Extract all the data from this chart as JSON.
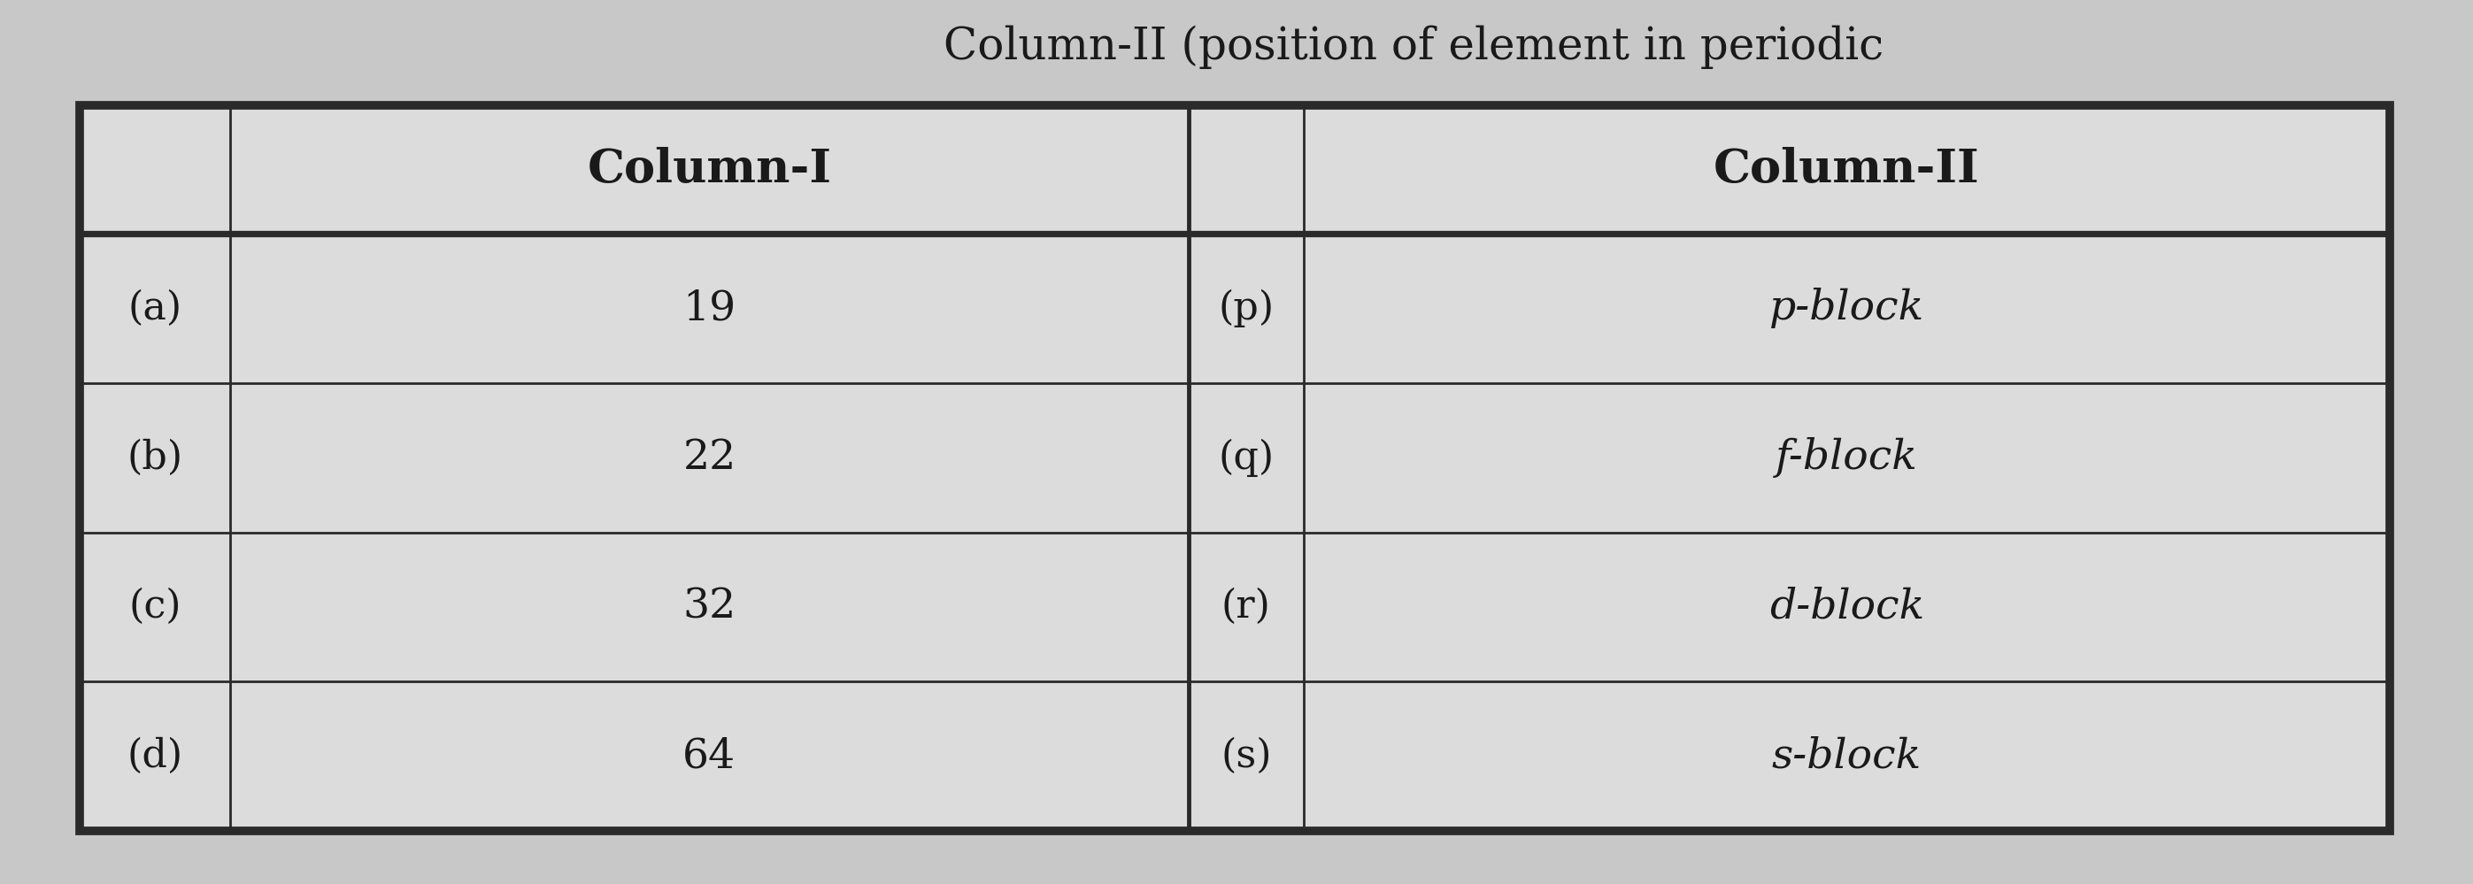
{
  "col1_header": "Column-I",
  "col2_header": "Column-II",
  "rows": [
    {
      "left_label": "(a)",
      "left_val": "19",
      "right_label": "(p)",
      "right_val": "p-block"
    },
    {
      "left_label": "(b)",
      "left_val": "22",
      "right_label": "(q)",
      "right_val": "f-block"
    },
    {
      "left_label": "(c)",
      "left_val": "32",
      "right_label": "(r)",
      "right_val": "d-block"
    },
    {
      "left_label": "(d)",
      "left_val": "64",
      "right_label": "(s)",
      "right_val": "s-block"
    }
  ],
  "page_bg": "#c8c8c8",
  "table_bg": "#dcdcdc",
  "line_color": "#2a2a2a",
  "text_color": "#1a1a1a",
  "title_text": "Column-II (position of element in periodic",
  "title_color": "#1a1a1a",
  "title_fontsize": 36,
  "header_fontsize": 38,
  "cell_fontsize": 34,
  "label_fontsize": 32
}
